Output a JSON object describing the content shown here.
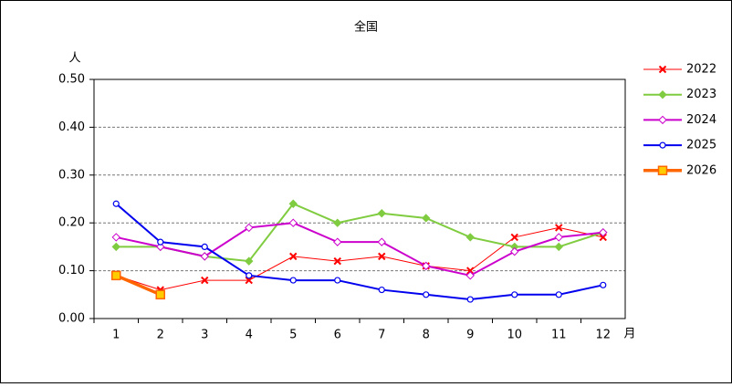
{
  "chart_data": {
    "type": "line",
    "title": "全国",
    "y_label": "人",
    "x_label": "月",
    "categories": [
      "1",
      "2",
      "3",
      "4",
      "5",
      "6",
      "7",
      "8",
      "9",
      "10",
      "11",
      "12"
    ],
    "series": [
      {
        "name": "2022",
        "color": "#ff0000",
        "marker": "x",
        "width": 1,
        "values": [
          0.09,
          0.06,
          0.08,
          0.08,
          0.13,
          0.12,
          0.13,
          0.11,
          0.1,
          0.17,
          0.19,
          0.17
        ]
      },
      {
        "name": "2023",
        "color": "#80cc40",
        "marker": "diamond",
        "width": 2,
        "values": [
          0.15,
          0.15,
          0.13,
          0.12,
          0.24,
          0.2,
          0.22,
          0.21,
          0.17,
          0.15,
          0.15,
          0.18
        ]
      },
      {
        "name": "2024",
        "color": "#cc00cc",
        "marker": "diamond-open",
        "width": 2,
        "values": [
          0.17,
          0.15,
          0.13,
          0.19,
          0.2,
          0.16,
          0.16,
          0.11,
          0.09,
          0.14,
          0.17,
          0.18
        ]
      },
      {
        "name": "2025",
        "color": "#0000ee",
        "marker": "circle-open",
        "width": 2,
        "values": [
          0.24,
          0.16,
          0.15,
          0.09,
          0.08,
          0.08,
          0.06,
          0.05,
          0.04,
          0.05,
          0.05,
          0.07
        ]
      },
      {
        "name": "2026",
        "color": "#ff6600",
        "marker": "square",
        "width": 3.5,
        "values": [
          0.09,
          0.05,
          null,
          null,
          null,
          null,
          null,
          null,
          null,
          null,
          null,
          null
        ]
      }
    ],
    "ylim": [
      0,
      0.5
    ],
    "yticks": [
      {
        "value": 0,
        "label": "0.00"
      },
      {
        "value": 0.1,
        "label": "0.10"
      },
      {
        "value": 0.2,
        "label": "0.20"
      },
      {
        "value": 0.3,
        "label": "0.30"
      },
      {
        "value": 0.4,
        "label": "0.40"
      },
      {
        "value": 0.5,
        "label": "0.50"
      }
    ],
    "grid": true,
    "legend": "right"
  }
}
